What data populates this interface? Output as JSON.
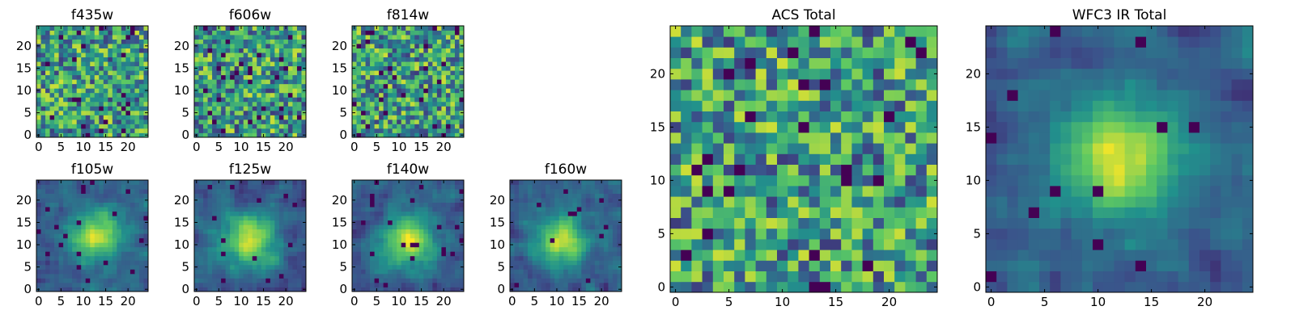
{
  "colormap": {
    "name": "viridis",
    "stops": [
      "#440154",
      "#3b528b",
      "#21918c",
      "#5ec962",
      "#fde725"
    ]
  },
  "chart_data": [
    {
      "type": "heatmap",
      "title": "f435w",
      "grid": [
        25,
        25
      ],
      "x_ticks": [
        "0",
        "5",
        "10",
        "15",
        "20"
      ],
      "y_ticks": [
        "0",
        "5",
        "10",
        "15",
        "20"
      ],
      "pattern": "noise",
      "seed": 11
    },
    {
      "type": "heatmap",
      "title": "f606w",
      "grid": [
        25,
        25
      ],
      "x_ticks": [
        "0",
        "5",
        "10",
        "15",
        "20"
      ],
      "y_ticks": [
        "0",
        "5",
        "10",
        "15",
        "20"
      ],
      "pattern": "noise",
      "seed": 23
    },
    {
      "type": "heatmap",
      "title": "f814w",
      "grid": [
        25,
        25
      ],
      "x_ticks": [
        "0",
        "5",
        "10",
        "15",
        "20"
      ],
      "y_ticks": [
        "0",
        "5",
        "10",
        "15",
        "20"
      ],
      "pattern": "noise",
      "seed": 37
    },
    {
      "type": "heatmap",
      "title": "f105w",
      "grid": [
        25,
        25
      ],
      "x_ticks": [
        "0",
        "5",
        "10",
        "15",
        "20"
      ],
      "y_ticks": [
        "0",
        "5",
        "10",
        "15",
        "20"
      ],
      "pattern": "source",
      "source_center": [
        13,
        12
      ],
      "seed": 41
    },
    {
      "type": "heatmap",
      "title": "f125w",
      "grid": [
        25,
        25
      ],
      "x_ticks": [
        "0",
        "5",
        "10",
        "15",
        "20"
      ],
      "y_ticks": [
        "0",
        "5",
        "10",
        "15",
        "20"
      ],
      "pattern": "source",
      "source_center": [
        12,
        11
      ],
      "seed": 53
    },
    {
      "type": "heatmap",
      "title": "f140w",
      "grid": [
        25,
        25
      ],
      "x_ticks": [
        "0",
        "5",
        "10",
        "15",
        "20"
      ],
      "y_ticks": [
        "0",
        "5",
        "10",
        "15",
        "20"
      ],
      "pattern": "source",
      "source_center": [
        12,
        11
      ],
      "seed": 67
    },
    {
      "type": "heatmap",
      "title": "f160w",
      "grid": [
        25,
        25
      ],
      "x_ticks": [
        "0",
        "5",
        "10",
        "15",
        "20"
      ],
      "y_ticks": [
        "0",
        "5",
        "10",
        "15",
        "20"
      ],
      "pattern": "source",
      "source_center": [
        11,
        11
      ],
      "seed": 79
    },
    {
      "type": "heatmap",
      "title": "ACS Total",
      "grid": [
        25,
        25
      ],
      "x_ticks": [
        "0",
        "5",
        "10",
        "15",
        "20"
      ],
      "y_ticks": [
        "0",
        "5",
        "10",
        "15",
        "20"
      ],
      "pattern": "noise",
      "seed": 97
    },
    {
      "type": "heatmap",
      "title": "WFC3 IR Total",
      "grid": [
        25,
        25
      ],
      "x_ticks": [
        "0",
        "5",
        "10",
        "15",
        "20"
      ],
      "y_ticks": [
        "0",
        "5",
        "10",
        "15",
        "20"
      ],
      "pattern": "source",
      "source_center": [
        12,
        12
      ],
      "seed": 113
    }
  ]
}
